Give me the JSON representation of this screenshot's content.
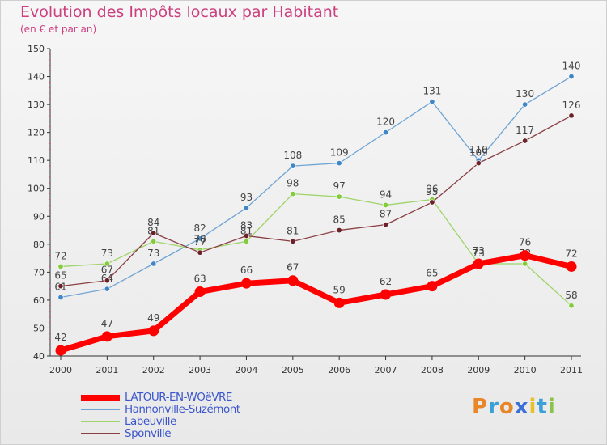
{
  "chart_data": {
    "type": "line",
    "title": "Evolution des Impôts locaux par Habitant",
    "subtitle": "(en € et par an)",
    "xlabel": "",
    "ylabel": "",
    "categories": [
      "2000",
      "2001",
      "2002",
      "2003",
      "2004",
      "2005",
      "2006",
      "2007",
      "2008",
      "2009",
      "2010",
      "2011"
    ],
    "ylim": [
      40,
      150
    ],
    "yticks": [
      40,
      50,
      60,
      70,
      80,
      90,
      100,
      110,
      120,
      130,
      140,
      150
    ],
    "grid": false,
    "legend_position": "bottom-left",
    "series": [
      {
        "name": "Hannonville-Suzémont",
        "color": "#6fa4d4",
        "marker": "#3f86c8",
        "values": [
          61,
          64,
          73,
          82,
          93,
          108,
          109,
          120,
          131,
          110,
          130,
          140
        ]
      },
      {
        "name": "Labeuville",
        "color": "#9ed46a",
        "marker": "#82cc3c",
        "values": [
          72,
          73,
          81,
          78,
          81,
          98,
          97,
          94,
          96,
          73,
          73,
          58
        ]
      },
      {
        "name": "Sponville",
        "color": "#8a3f45",
        "marker": "#6b2228",
        "values": [
          65,
          67,
          84,
          77,
          83,
          81,
          85,
          87,
          95,
          109,
          117,
          126
        ]
      },
      {
        "name": "LATOUR-EN-WOëVRE",
        "color": "#ff0000",
        "marker": "#ff0000",
        "values": [
          42,
          47,
          49,
          63,
          66,
          67,
          59,
          62,
          65,
          73,
          76,
          72
        ]
      }
    ]
  },
  "legend_order": [
    3,
    0,
    1,
    2
  ],
  "logo": {
    "letters": [
      "P",
      "r",
      "o",
      "x",
      "i",
      "t",
      "i"
    ],
    "colors": [
      "#e8862a",
      "#3aa0d8",
      "#e8862a",
      "#3a6fd8",
      "#e8c12a",
      "#3aa0d8",
      "#8bc24a"
    ]
  }
}
